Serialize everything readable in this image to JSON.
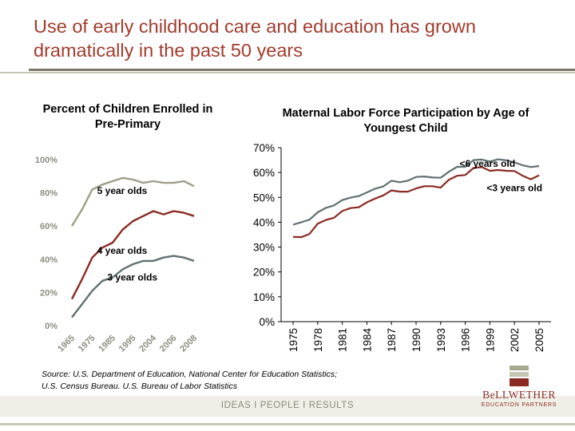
{
  "slide": {
    "title": "Use of early childhood care and education has grown dramatically in the past 50 years"
  },
  "source": {
    "line1": "Source:  U.S. Department of Education, National Center for Education Statistics;",
    "line2": "U.S. Census Bureau. U.S. Bureau of Labor Statistics"
  },
  "footer": {
    "text": "IDEAS  I  PEOPLE  I  RESULTS",
    "logo_name": "BeLLWETHER",
    "logo_sub": "EDUCATION PARTNERS"
  },
  "chart_data": [
    {
      "type": "line",
      "title": "Percent of Children Enrolled in Pre-Primary",
      "x": [
        "1965",
        "1970",
        "1975",
        "1980",
        "1985",
        "1990",
        "1995",
        "2000",
        "2004",
        "2005",
        "2006",
        "2007",
        "2008"
      ],
      "xticks": [
        "1965",
        "1975",
        "1985",
        "1995",
        "2004",
        "2006",
        "2008"
      ],
      "ylim": [
        0,
        100
      ],
      "yticks": [
        "0%",
        "20%",
        "40%",
        "60%",
        "80%",
        "100%"
      ],
      "series": [
        {
          "name": "5 year olds",
          "color": "#9e9e88",
          "values": [
            60,
            70,
            82,
            85,
            87,
            89,
            88,
            86,
            87,
            86,
            86,
            87,
            84
          ]
        },
        {
          "name": "4 year olds",
          "color": "#8a2a22",
          "values": [
            16,
            28,
            41,
            47,
            50,
            58,
            63,
            66,
            69,
            67,
            69,
            68,
            66
          ]
        },
        {
          "name": "3 year olds",
          "color": "#5f7070",
          "values": [
            5,
            13,
            21,
            27,
            29,
            34,
            37,
            39,
            39,
            41,
            42,
            41,
            39
          ]
        }
      ],
      "grid": false
    },
    {
      "type": "line",
      "title": "Maternal Labor Force Participation by Age of Youngest Child",
      "x": [
        1975,
        1976,
        1977,
        1978,
        1979,
        1980,
        1981,
        1982,
        1983,
        1984,
        1985,
        1986,
        1987,
        1988,
        1989,
        1990,
        1991,
        1992,
        1993,
        1994,
        1995,
        1996,
        1997,
        1998,
        1999,
        2000,
        2001,
        2002,
        2003,
        2004,
        2005
      ],
      "xticks": [
        "1975",
        "1978",
        "1981",
        "1984",
        "1987",
        "1990",
        "1993",
        "1996",
        "1999",
        "2002",
        "2005"
      ],
      "ylim": [
        0,
        70
      ],
      "yticks": [
        "0%",
        "10%",
        "20%",
        "30%",
        "40%",
        "50%",
        "60%",
        "70%"
      ],
      "series": [
        {
          "name": "<6 years old",
          "color": "#5f7070",
          "values": [
            39,
            40,
            41,
            44,
            45.8,
            46.8,
            48.9,
            49.9,
            50.5,
            52,
            53.5,
            54.4,
            56.7,
            56.1,
            56.7,
            58.2,
            58.4,
            58.0,
            57.9,
            60.3,
            62.3,
            62.3,
            65.0,
            65.2,
            64.4,
            65.3,
            64.9,
            64.1,
            62.9,
            62.2,
            62.6
          ]
        },
        {
          "name": "<3 years old",
          "color": "#8a2a22",
          "values": [
            34.1,
            34.0,
            35.3,
            39.4,
            40.9,
            41.8,
            44.5,
            45.7,
            46.0,
            48.0,
            49.5,
            50.8,
            52.8,
            52.3,
            52.3,
            53.6,
            54.5,
            54.5,
            53.9,
            57.1,
            58.7,
            59.0,
            61.8,
            62.2,
            60.7,
            61.0,
            60.7,
            60.6,
            58.7,
            57.3,
            58.9
          ]
        }
      ],
      "grid": false
    }
  ]
}
